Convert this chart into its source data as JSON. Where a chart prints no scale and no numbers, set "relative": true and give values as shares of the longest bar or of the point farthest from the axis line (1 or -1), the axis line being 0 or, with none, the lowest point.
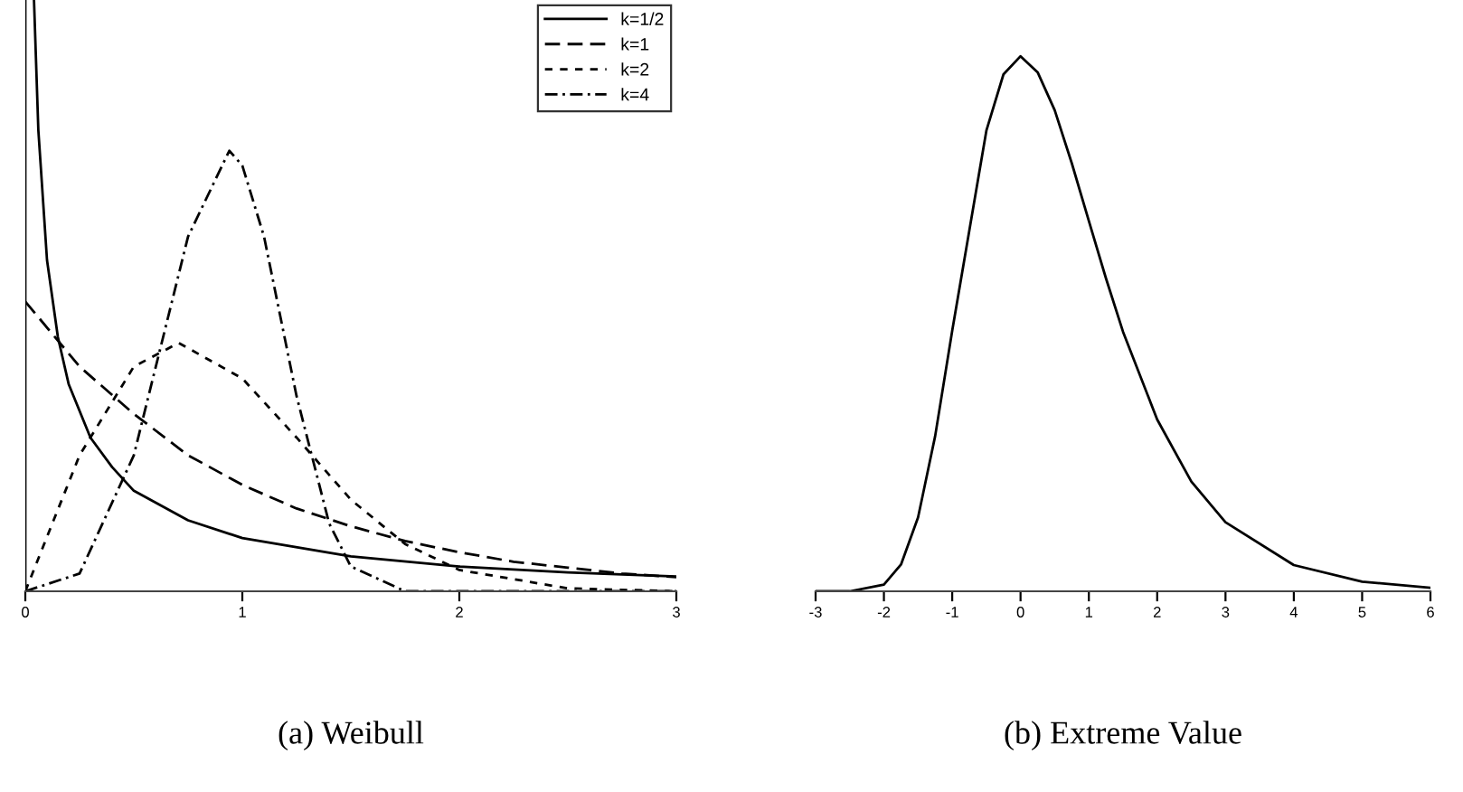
{
  "chart_data": [
    {
      "type": "line",
      "relative": true,
      "xlabel": "(a) Weibull",
      "xlim": [
        0,
        3
      ],
      "xticks": [
        0,
        1,
        2,
        3
      ],
      "tick_labels": "x",
      "legend": "top right",
      "grid": false,
      "ref_lines": [
        {
          "axis": "x",
          "value": 0
        }
      ],
      "series": [
        {
          "name": "k=1/2",
          "color": "#000000",
          "line_style": "solid",
          "x": [
            0.04,
            0.06,
            0.1,
            0.15,
            0.2,
            0.3,
            0.4,
            0.5,
            0.75,
            1,
            1.5,
            2,
            2.5,
            3
          ],
          "values": [
            1.0,
            0.78,
            0.56,
            0.43,
            0.35,
            0.26,
            0.21,
            0.17,
            0.12,
            0.09,
            0.059,
            0.042,
            0.032,
            0.025
          ]
        },
        {
          "name": "k=1",
          "color": "#000000",
          "line_style": "dashed",
          "x": [
            0,
            0.25,
            0.5,
            0.75,
            1,
            1.25,
            1.5,
            1.75,
            2,
            2.25,
            2.5,
            2.75,
            3
          ],
          "values": [
            0.49,
            0.38,
            0.3,
            0.23,
            0.18,
            0.14,
            0.11,
            0.085,
            0.066,
            0.05,
            0.04,
            0.03,
            0.024
          ]
        },
        {
          "name": "k=2",
          "color": "#000000",
          "line_style": "dotted",
          "x": [
            0,
            0.25,
            0.5,
            0.707,
            1,
            1.25,
            1.5,
            1.75,
            2,
            2.5,
            3
          ],
          "values": [
            0,
            0.23,
            0.38,
            0.42,
            0.36,
            0.26,
            0.155,
            0.08,
            0.036,
            0.005,
            0
          ]
        },
        {
          "name": "k=4",
          "color": "#000000",
          "line_style": "dashdot",
          "x": [
            0,
            0.25,
            0.5,
            0.75,
            0.94,
            1,
            1.1,
            1.25,
            1.4,
            1.5,
            1.75,
            2,
            3
          ],
          "values": [
            0,
            0.03,
            0.23,
            0.6,
            0.745,
            0.72,
            0.6,
            0.33,
            0.115,
            0.042,
            0,
            0,
            0
          ]
        }
      ]
    },
    {
      "type": "line",
      "relative": true,
      "xlabel": "(b) Extreme Value",
      "xlim": [
        -3,
        6
      ],
      "xticks": [
        -3,
        -2,
        -1,
        0,
        1,
        2,
        3,
        4,
        5,
        6
      ],
      "tick_labels": "x",
      "grid": false,
      "series": [
        {
          "color": "#000000",
          "line_style": "solid",
          "x": [
            -3,
            -2.5,
            -2,
            -1.75,
            -1.5,
            -1.25,
            -1,
            -0.5,
            -0.25,
            0,
            0.25,
            0.5,
            0.75,
            1,
            1.25,
            1.5,
            2,
            2.5,
            3,
            4,
            5,
            6
          ],
          "values": [
            0,
            0,
            0.0124,
            0.05,
            0.138,
            0.29,
            0.487,
            0.861,
            0.966,
            1,
            0.97,
            0.899,
            0.8,
            0.692,
            0.585,
            0.485,
            0.321,
            0.205,
            0.129,
            0.049,
            0.018,
            0.0067
          ]
        }
      ]
    }
  ]
}
